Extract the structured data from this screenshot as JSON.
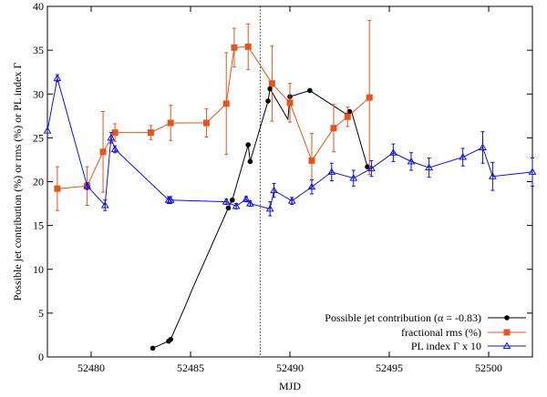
{
  "chart_data": {
    "type": "line",
    "xlabel": "MJD",
    "ylabel": "Possible jet contribution (%) or rms (%) or PL index Γ",
    "xlim": [
      52477.8,
      52502.2
    ],
    "ylim": [
      0,
      40
    ],
    "x_ticks": [
      52480,
      52485,
      52490,
      52495,
      52500
    ],
    "x_tick_labels": [
      "52480",
      "52485",
      "52490",
      "52495",
      "52500"
    ],
    "y_ticks": [
      0,
      5,
      10,
      15,
      20,
      25,
      30,
      35,
      40
    ],
    "y_tick_labels": [
      "0",
      "5",
      "10",
      "15",
      "20",
      "25",
      "30",
      "35",
      "40"
    ],
    "vline_x": 52488.5,
    "legend_position": "bottom-right",
    "series": [
      {
        "name": "Possible jet contribution (α = -0.83)",
        "color": "#000000",
        "marker": "circle",
        "points": [
          {
            "x": 52483.1,
            "y": 1.0
          },
          {
            "x": 52483.9,
            "y": 1.8
          },
          {
            "x": 52484.0,
            "y": 2.0
          },
          {
            "x": 52484.7,
            "y": 5.6
          },
          {
            "x": 52485.1,
            "y": 7.8
          },
          {
            "x": 52486.9,
            "y": 17.0
          },
          {
            "x": 52487.1,
            "y": 17.9
          },
          {
            "x": 52487.9,
            "y": 24.2
          },
          {
            "x": 52488.0,
            "y": 22.3
          },
          {
            "x": 52488.9,
            "y": 29.2
          },
          {
            "x": 52489.0,
            "y": 30.6
          },
          {
            "x": 52489.9,
            "y": 27.1
          },
          {
            "x": 52490.0,
            "y": 29.7
          },
          {
            "x": 52491.0,
            "y": 30.4
          },
          {
            "x": 52492.9,
            "y": 27.6
          },
          {
            "x": 52493.0,
            "y": 28.0
          },
          {
            "x": 52493.1,
            "y": 28.0
          },
          {
            "x": 52493.9,
            "y": 21.7
          }
        ],
        "markers": [
          0,
          1,
          2,
          5,
          6,
          7,
          8,
          9,
          10,
          12,
          13,
          14,
          15,
          17
        ]
      },
      {
        "name": "fractional rms (%)",
        "color": "#e8531a",
        "marker": "square",
        "points": [
          {
            "x": 52478.3,
            "y": 19.2,
            "err": 2.5
          },
          {
            "x": 52479.8,
            "y": 19.5,
            "err": 2.2
          },
          {
            "x": 52480.6,
            "y": 23.4,
            "err": 4.6
          },
          {
            "x": 52481.2,
            "y": 25.6,
            "err": 1.0
          },
          {
            "x": 52483.0,
            "y": 25.6,
            "err": 0.8
          },
          {
            "x": 52484.0,
            "y": 26.7,
            "err": 2.0
          },
          {
            "x": 52485.8,
            "y": 26.7,
            "err": 1.6
          },
          {
            "x": 52486.8,
            "y": 28.9,
            "err": 5.8
          },
          {
            "x": 52487.2,
            "y": 35.3,
            "err": 2.2
          },
          {
            "x": 52487.9,
            "y": 35.4,
            "err": 2.6
          },
          {
            "x": 52489.1,
            "y": 31.2,
            "err": 4.3
          },
          {
            "x": 52490.0,
            "y": 29.0,
            "err": 2.2
          },
          {
            "x": 52491.1,
            "y": 22.4,
            "err": 3.1
          },
          {
            "x": 52492.2,
            "y": 26.1,
            "err": 2.7
          },
          {
            "x": 52492.9,
            "y": 27.4,
            "err": 1.1
          },
          {
            "x": 52494.0,
            "y": 29.6,
            "err": 8.8
          }
        ]
      },
      {
        "name": "PL index Γ x 10",
        "color": "#1010e0",
        "marker": "triangle",
        "points": [
          {
            "x": 52477.8,
            "y": 25.8,
            "err": 0
          },
          {
            "x": 52478.3,
            "y": 31.8,
            "err": 0.4
          },
          {
            "x": 52479.8,
            "y": 19.5,
            "err": 0.4
          },
          {
            "x": 52480.7,
            "y": 17.3,
            "err": 0.6
          },
          {
            "x": 52481.0,
            "y": 25.0,
            "err": 0.6
          },
          {
            "x": 52481.2,
            "y": 23.7,
            "err": 0.4
          },
          {
            "x": 52483.9,
            "y": 17.9,
            "err": 0.4
          },
          {
            "x": 52484.0,
            "y": 17.9,
            "err": 0.4
          },
          {
            "x": 52486.8,
            "y": 17.7,
            "err": 0.3
          },
          {
            "x": 52487.3,
            "y": 17.2,
            "err": 0.3
          },
          {
            "x": 52487.8,
            "y": 18.0,
            "err": 0.3
          },
          {
            "x": 52488.0,
            "y": 17.5,
            "err": 0.3
          },
          {
            "x": 52489.0,
            "y": 16.9,
            "err": 0.8
          },
          {
            "x": 52489.2,
            "y": 19.0,
            "err": 0.8
          },
          {
            "x": 52490.1,
            "y": 17.8,
            "err": 0.4
          },
          {
            "x": 52491.1,
            "y": 19.4,
            "err": 0.8
          },
          {
            "x": 52492.1,
            "y": 21.1,
            "err": 1.0
          },
          {
            "x": 52493.2,
            "y": 20.4,
            "err": 0.9
          },
          {
            "x": 52494.1,
            "y": 21.5,
            "err": 0.9
          },
          {
            "x": 52495.2,
            "y": 23.3,
            "err": 1.0
          },
          {
            "x": 52496.1,
            "y": 22.3,
            "err": 1.0
          },
          {
            "x": 52497.0,
            "y": 21.6,
            "err": 1.1
          },
          {
            "x": 52498.7,
            "y": 22.8,
            "err": 1.0
          },
          {
            "x": 52499.7,
            "y": 23.9,
            "err": 1.8
          },
          {
            "x": 52500.2,
            "y": 20.6,
            "err": 1.6
          },
          {
            "x": 52502.2,
            "y": 21.1,
            "err": 1.6
          }
        ]
      }
    ]
  }
}
